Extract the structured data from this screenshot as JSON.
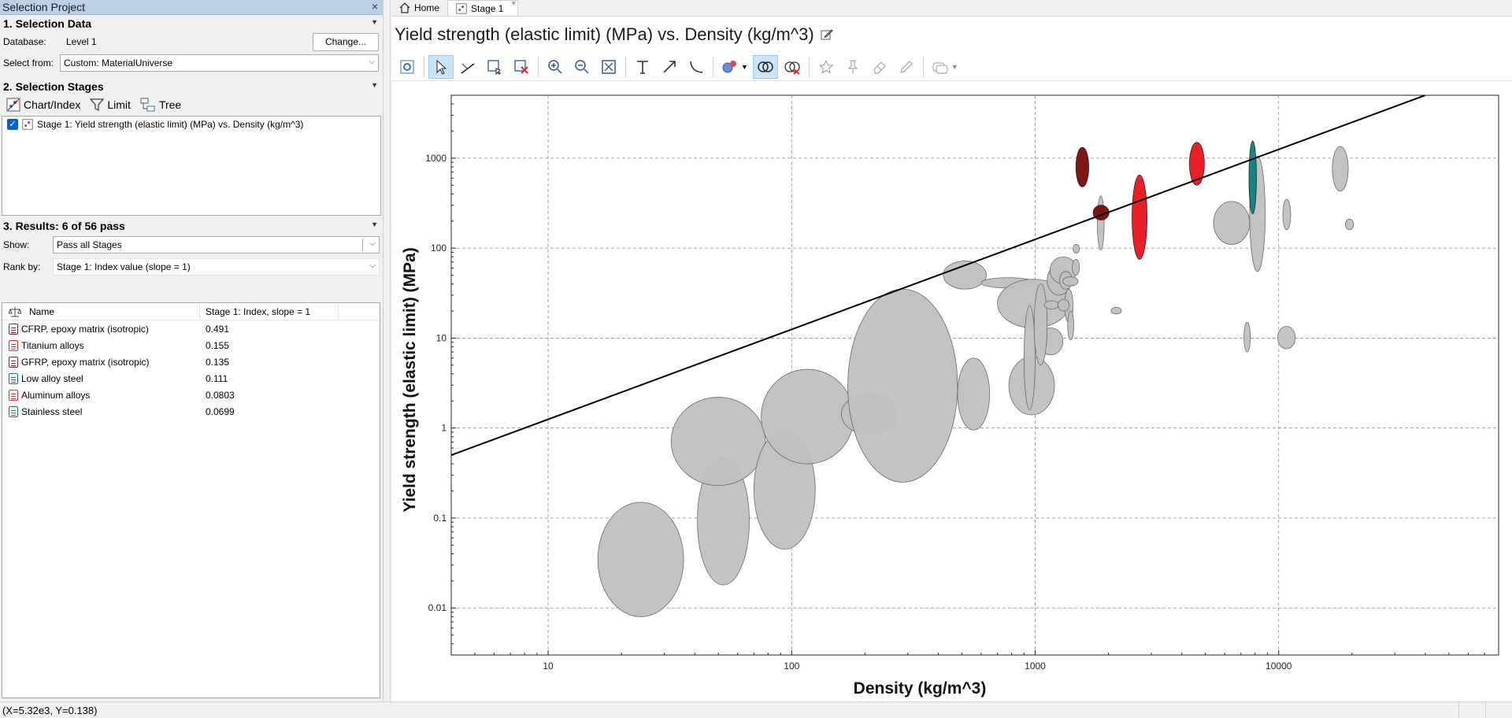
{
  "panel": {
    "title": "Selection Project",
    "close": "×"
  },
  "selection_data": {
    "heading": "1. Selection Data",
    "database_label": "Database:",
    "database_value": "Level 1",
    "change_button": "Change...",
    "select_from_label": "Select from:",
    "select_from_value": "Custom: MaterialUniverse"
  },
  "selection_stages": {
    "heading": "2. Selection Stages",
    "tools": [
      {
        "label": "Chart/Index",
        "icon": "chart-icon"
      },
      {
        "label": "Limit",
        "icon": "funnel-icon"
      },
      {
        "label": "Tree",
        "icon": "tree-icon"
      }
    ],
    "stages": [
      {
        "label": "Stage 1: Yield strength (elastic limit) (MPa) vs. Density (kg/m^3)",
        "checked": true
      }
    ]
  },
  "results": {
    "heading": "3. Results: 6 of 56 pass",
    "show_label": "Show:",
    "show_value": "Pass all Stages",
    "rank_label": "Rank by:",
    "rank_value": "Stage 1: Index value (slope = 1)",
    "columns": [
      "Name",
      "Stage 1: Index, slope = 1"
    ],
    "rows": [
      {
        "name": "CFRP, epoxy matrix (isotropic)",
        "value": "0.491",
        "color": "#8b1a1a"
      },
      {
        "name": "Titanium alloys",
        "value": "0.155",
        "color": "#e0303a"
      },
      {
        "name": "GFRP, epoxy matrix (isotropic)",
        "value": "0.135",
        "color": "#8b1a1a"
      },
      {
        "name": "Low alloy steel",
        "value": "0.111",
        "color": "#137a7a"
      },
      {
        "name": "Aluminum alloys",
        "value": "0.0803",
        "color": "#e0303a"
      },
      {
        "name": "Stainless steel",
        "value": "0.0699",
        "color": "#137a7a"
      }
    ]
  },
  "tabs": [
    {
      "label": "Home",
      "icon": "home-icon",
      "active": false
    },
    {
      "label": "Stage 1",
      "icon": "chart-icon",
      "active": true,
      "close": "×"
    }
  ],
  "chart_title": "Yield strength (elastic limit) (MPa) vs. Density (kg/m^3)",
  "toolbar_icons": [
    "settings-icon",
    "pointer-icon",
    "line-tool-icon",
    "box-select-icon",
    "delete-selection-icon",
    "zoom-in-icon",
    "zoom-out-icon",
    "zoom-fit-icon",
    "text-icon",
    "arrow-icon",
    "curve-icon",
    "highlight-icon",
    "dropdown-icon",
    "intersect-icon",
    "hide-icon",
    "star-icon",
    "pin-icon",
    "eraser-icon",
    "pencil-icon",
    "label-icon",
    "dropdown-icon"
  ],
  "status": "(X=5.32e3, Y=0.138)",
  "colors": {
    "fail": "#c0c0c0",
    "pass_red": "#e8151b",
    "pass_dark": "#7a0a0a",
    "pass_teal": "#0f7f7f"
  },
  "chart_data": {
    "type": "scatter",
    "xlabel": "Density (kg/m^3)",
    "ylabel": "Yield strength (elastic limit) (MPa)",
    "xscale": "log",
    "yscale": "log",
    "xlim": [
      4,
      80000
    ],
    "ylim": [
      0.003,
      5000
    ],
    "xticks": [
      {
        "v": 10,
        "label": "10"
      },
      {
        "v": 100,
        "label": "100"
      },
      {
        "v": 1000,
        "label": "1000"
      },
      {
        "v": 10000,
        "label": "10000"
      }
    ],
    "yticks": [
      {
        "v": 0.01,
        "label": "0.01"
      },
      {
        "v": 0.1,
        "label": "0.1"
      },
      {
        "v": 1,
        "label": "1"
      },
      {
        "v": 10,
        "label": "10"
      },
      {
        "v": 100,
        "label": "100"
      },
      {
        "v": 1000,
        "label": "1000"
      }
    ],
    "grid": true,
    "index_line": {
      "slope": 1,
      "points": [
        [
          4,
          0.5
        ],
        [
          40000,
          5000
        ]
      ]
    },
    "bubbles": [
      {
        "x": [
          16,
          36
        ],
        "y": [
          0.008,
          0.15
        ],
        "status": "fail"
      },
      {
        "x": [
          41,
          67
        ],
        "y": [
          0.018,
          0.48
        ],
        "status": "fail"
      },
      {
        "x": [
          32,
          78
        ],
        "y": [
          0.23,
          2.2
        ],
        "status": "fail"
      },
      {
        "x": [
          70,
          125
        ],
        "y": [
          0.045,
          0.95
        ],
        "status": "fail"
      },
      {
        "x": [
          75,
          180
        ],
        "y": [
          0.4,
          4.5
        ],
        "status": "fail"
      },
      {
        "x": [
          160,
          270
        ],
        "y": [
          0.85,
          2.4
        ],
        "status": "fail"
      },
      {
        "x": [
          170,
          480
        ],
        "y": [
          0.25,
          35
        ],
        "status": "fail"
      },
      {
        "x": [
          480,
          650
        ],
        "y": [
          0.95,
          6
        ],
        "status": "fail"
      },
      {
        "x": [
          420,
          630
        ],
        "y": [
          35,
          72
        ],
        "status": "fail"
      },
      {
        "x": [
          600,
          1000
        ],
        "y": [
          36,
          47
        ],
        "status": "fail"
      },
      {
        "x": [
          700,
          1380
        ],
        "y": [
          13,
          45
        ],
        "status": "fail"
      },
      {
        "x": [
          780,
          1200
        ],
        "y": [
          1.4,
          6.2
        ],
        "status": "fail"
      },
      {
        "x": [
          900,
          1000
        ],
        "y": [
          1.6,
          23
        ],
        "status": "fail"
      },
      {
        "x": [
          1030,
          1300
        ],
        "y": [
          6.5,
          13
        ],
        "status": "fail"
      },
      {
        "x": [
          990,
          1120
        ],
        "y": [
          5,
          40
        ],
        "status": "fail"
      },
      {
        "x": [
          1120,
          1400
        ],
        "y": [
          30,
          65
        ],
        "status": "fail"
      },
      {
        "x": [
          1150,
          1480
        ],
        "y": [
          40,
          80
        ],
        "status": "fail"
      },
      {
        "x": [
          1260,
          1420
        ],
        "y": [
          35,
          55
        ],
        "status": "fail"
      },
      {
        "x": [
          1300,
          1500
        ],
        "y": [
          38,
          48
        ],
        "status": "fail"
      },
      {
        "x": [
          1320,
          1430
        ],
        "y": [
          15,
          35
        ],
        "status": "fail"
      },
      {
        "x": [
          1360,
          1440
        ],
        "y": [
          9.5,
          20
        ],
        "status": "fail"
      },
      {
        "x": [
          1420,
          1520
        ],
        "y": [
          50,
          75
        ],
        "status": "fail"
      },
      {
        "x": [
          1430,
          1520
        ],
        "y": [
          88,
          110
        ],
        "status": "fail"
      },
      {
        "x": [
          1090,
          1250
        ],
        "y": [
          21,
          26
        ],
        "status": "fail"
      },
      {
        "x": [
          1240,
          1380
        ],
        "y": [
          20,
          27
        ],
        "status": "fail"
      },
      {
        "x": [
          1800,
          1920
        ],
        "y": [
          95,
          380
        ],
        "status": "fail"
      },
      {
        "x": [
          2050,
          2260
        ],
        "y": [
          18.5,
          22
        ],
        "status": "fail"
      },
      {
        "x": [
          5400,
          7600
        ],
        "y": [
          110,
          330
        ],
        "status": "fail"
      },
      {
        "x": [
          7200,
          7650
        ],
        "y": [
          7,
          15
        ],
        "status": "fail"
      },
      {
        "x": [
          9900,
          11700
        ],
        "y": [
          7.6,
          13.5
        ],
        "status": "fail"
      },
      {
        "x": [
          7600,
          8800
        ],
        "y": [
          55,
          1050
        ],
        "status": "fail"
      },
      {
        "x": [
          10400,
          11200
        ],
        "y": [
          160,
          350
        ],
        "status": "fail"
      },
      {
        "x": [
          16600,
          19300
        ],
        "y": [
          430,
          1350
        ],
        "status": "fail"
      },
      {
        "x": [
          18800,
          20300
        ],
        "y": [
          160,
          210
        ],
        "status": "fail"
      },
      {
        "x": [
          1470,
          1660
        ],
        "y": [
          480,
          1320
        ],
        "status": "pass_dark"
      },
      {
        "x": [
          1730,
          2010
        ],
        "y": [
          205,
          300
        ],
        "status": "pass_dark"
      },
      {
        "x": [
          2500,
          2880
        ],
        "y": [
          75,
          650
        ],
        "status": "pass_red"
      },
      {
        "x": [
          4300,
          4950
        ],
        "y": [
          500,
          1500
        ],
        "status": "pass_red"
      },
      {
        "x": [
          7550,
          8100
        ],
        "y": [
          240,
          1550
        ],
        "status": "pass_teal"
      }
    ]
  }
}
